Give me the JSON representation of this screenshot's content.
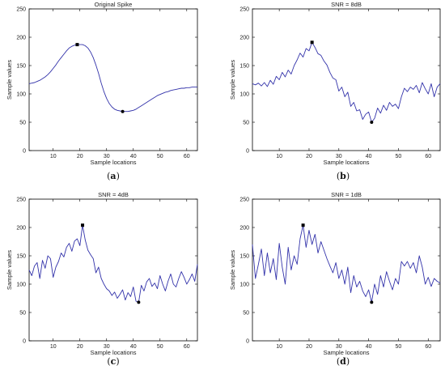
{
  "chart_data": [
    {
      "type": "line",
      "title": "Original Spike",
      "caption": "a",
      "xlabel": "Sample locations",
      "ylabel": "Sample values",
      "xlim": [
        1,
        64
      ],
      "ylim": [
        0,
        250
      ],
      "xticks": [
        10,
        20,
        30,
        40,
        50,
        60
      ],
      "yticks": [
        0,
        50,
        100,
        150,
        200,
        250
      ],
      "grid": false,
      "line_color": "#3333aa",
      "x": [
        1,
        2,
        3,
        4,
        5,
        6,
        7,
        8,
        9,
        10,
        11,
        12,
        13,
        14,
        15,
        16,
        17,
        18,
        19,
        20,
        21,
        22,
        23,
        24,
        25,
        26,
        27,
        28,
        29,
        30,
        31,
        32,
        33,
        34,
        35,
        36,
        37,
        38,
        39,
        40,
        41,
        42,
        43,
        44,
        45,
        46,
        47,
        48,
        49,
        50,
        51,
        52,
        53,
        54,
        55,
        56,
        57,
        58,
        59,
        60,
        61,
        62,
        63,
        64
      ],
      "y": [
        118,
        119,
        120,
        122,
        124,
        127,
        130,
        134,
        139,
        145,
        151,
        158,
        164,
        170,
        176,
        181,
        184,
        186,
        187,
        187,
        187,
        185,
        181,
        174,
        164,
        151,
        136,
        119,
        104,
        92,
        83,
        77,
        73,
        71,
        70,
        69,
        69,
        69,
        70,
        71,
        73,
        76,
        79,
        82,
        85,
        88,
        91,
        94,
        97,
        99,
        101,
        103,
        104,
        106,
        107,
        108,
        109,
        110,
        110,
        111,
        111,
        112,
        112,
        112
      ],
      "markers": [
        {
          "x": 21,
          "y": 187
        },
        {
          "x": 38,
          "y": 69
        }
      ]
    },
    {
      "type": "line",
      "title": "SNR = 8dB",
      "caption": "b",
      "xlabel": "Sample locations",
      "ylabel": "Sample values",
      "xlim": [
        1,
        64
      ],
      "ylim": [
        0,
        250
      ],
      "xticks": [
        10,
        20,
        30,
        40,
        50,
        60
      ],
      "yticks": [
        0,
        50,
        100,
        150,
        200,
        250
      ],
      "grid": false,
      "line_color": "#3333aa",
      "x": [
        1,
        2,
        3,
        4,
        5,
        6,
        7,
        8,
        9,
        10,
        11,
        12,
        13,
        14,
        15,
        16,
        17,
        18,
        19,
        20,
        21,
        22,
        23,
        24,
        25,
        26,
        27,
        28,
        29,
        30,
        31,
        32,
        33,
        34,
        35,
        36,
        37,
        38,
        39,
        40,
        41,
        42,
        43,
        44,
        45,
        46,
        47,
        48,
        49,
        50,
        51,
        52,
        53,
        54,
        55,
        56,
        57,
        58,
        59,
        60,
        61,
        62,
        63,
        64
      ],
      "y": [
        118,
        116,
        119,
        114,
        120,
        113,
        124,
        117,
        131,
        125,
        138,
        130,
        142,
        135,
        150,
        160,
        172,
        165,
        180,
        176,
        191,
        182,
        171,
        168,
        158,
        151,
        138,
        128,
        125,
        105,
        112,
        95,
        103,
        78,
        85,
        70,
        72,
        55,
        64,
        68,
        50,
        57,
        75,
        66,
        80,
        71,
        85,
        78,
        82,
        74,
        95,
        110,
        104,
        112,
        108,
        115,
        102,
        120,
        109,
        100,
        118,
        95,
        112,
        118
      ]
    },
    {
      "type": "line",
      "title": "SNR = 4dB",
      "caption": "c",
      "xlabel": "Sample locations",
      "ylabel": "Sample values",
      "xlim": [
        1,
        64
      ],
      "ylim": [
        0,
        250
      ],
      "xticks": [
        10,
        20,
        30,
        40,
        50,
        60
      ],
      "yticks": [
        0,
        50,
        100,
        150,
        200,
        250
      ],
      "grid": false,
      "line_color": "#3333aa",
      "x": [
        1,
        2,
        3,
        4,
        5,
        6,
        7,
        8,
        9,
        10,
        11,
        12,
        13,
        14,
        15,
        16,
        17,
        18,
        19,
        20,
        21,
        22,
        23,
        24,
        25,
        26,
        27,
        28,
        29,
        30,
        31,
        32,
        33,
        34,
        35,
        36,
        37,
        38,
        39,
        40,
        41,
        42,
        43,
        44,
        45,
        46,
        47,
        48,
        49,
        50,
        51,
        52,
        53,
        54,
        55,
        56,
        57,
        58,
        59,
        60,
        61,
        62,
        63,
        64
      ],
      "y": [
        125,
        115,
        132,
        138,
        110,
        142,
        128,
        150,
        145,
        112,
        130,
        140,
        155,
        148,
        165,
        172,
        158,
        176,
        180,
        168,
        204,
        178,
        160,
        152,
        145,
        120,
        130,
        110,
        100,
        92,
        88,
        80,
        86,
        75,
        82,
        90,
        72,
        85,
        78,
        95,
        70,
        68,
        98,
        88,
        104,
        110,
        96,
        102,
        92,
        115,
        100,
        88,
        105,
        118,
        100,
        95,
        110,
        122,
        112,
        100,
        108,
        118,
        105,
        135
      ]
    },
    {
      "type": "line",
      "title": "SNR = 1dB",
      "caption": "d",
      "xlabel": "Sample locations",
      "ylabel": "Sample values",
      "xlim": [
        1,
        64
      ],
      "ylim": [
        0,
        250
      ],
      "xticks": [
        10,
        20,
        30,
        40,
        50,
        60
      ],
      "yticks": [
        0,
        50,
        100,
        150,
        200,
        250
      ],
      "grid": false,
      "line_color": "#3333aa",
      "x": [
        1,
        2,
        3,
        4,
        5,
        6,
        7,
        8,
        9,
        10,
        11,
        12,
        13,
        14,
        15,
        16,
        17,
        18,
        19,
        20,
        21,
        22,
        23,
        24,
        25,
        26,
        27,
        28,
        29,
        30,
        31,
        32,
        33,
        34,
        35,
        36,
        37,
        38,
        39,
        40,
        41,
        42,
        43,
        44,
        45,
        46,
        47,
        48,
        49,
        50,
        51,
        52,
        53,
        54,
        55,
        56,
        57,
        58,
        59,
        60,
        61,
        62,
        63,
        64
      ],
      "y": [
        170,
        110,
        135,
        162,
        115,
        155,
        120,
        145,
        108,
        172,
        130,
        100,
        165,
        125,
        150,
        135,
        180,
        204,
        165,
        195,
        170,
        188,
        155,
        175,
        160,
        145,
        132,
        120,
        138,
        110,
        125,
        100,
        130,
        85,
        115,
        95,
        105,
        88,
        78,
        90,
        68,
        100,
        82,
        115,
        95,
        122,
        105,
        90,
        110,
        100,
        140,
        132,
        140,
        128,
        138,
        120,
        150,
        130,
        100,
        112,
        96,
        110,
        105,
        102
      ]
    }
  ],
  "captions": {
    "a": {
      "open": "(",
      "letter": "a",
      "close": ")"
    },
    "b": {
      "open": "(",
      "letter": "b",
      "close": ")"
    },
    "c": {
      "open": "(",
      "letter": "c",
      "close": ")"
    },
    "d": {
      "open": "(",
      "letter": "d",
      "close": ")"
    }
  }
}
